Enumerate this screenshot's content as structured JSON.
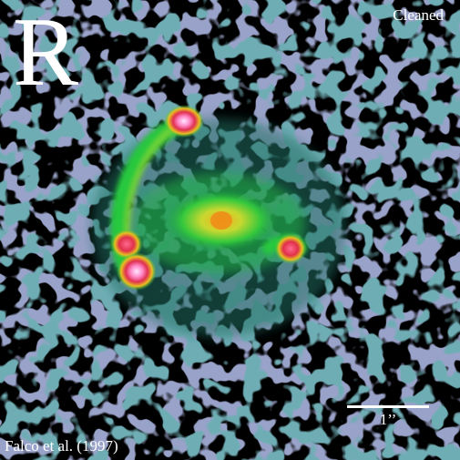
{
  "image": {
    "band_letter": "R",
    "status_label": "Cleaned",
    "credit": "Falco et al. (1997)",
    "scale_label": "1’’"
  },
  "colors": {
    "background": "#000000",
    "noise_low": "#4a5a8c",
    "noise_mid": "#2f8f80",
    "ring_glow": "#1fc23a",
    "core_yellow": "#e8c020",
    "core_red": "#e0305a",
    "core_peak": "#ffc8f0"
  }
}
